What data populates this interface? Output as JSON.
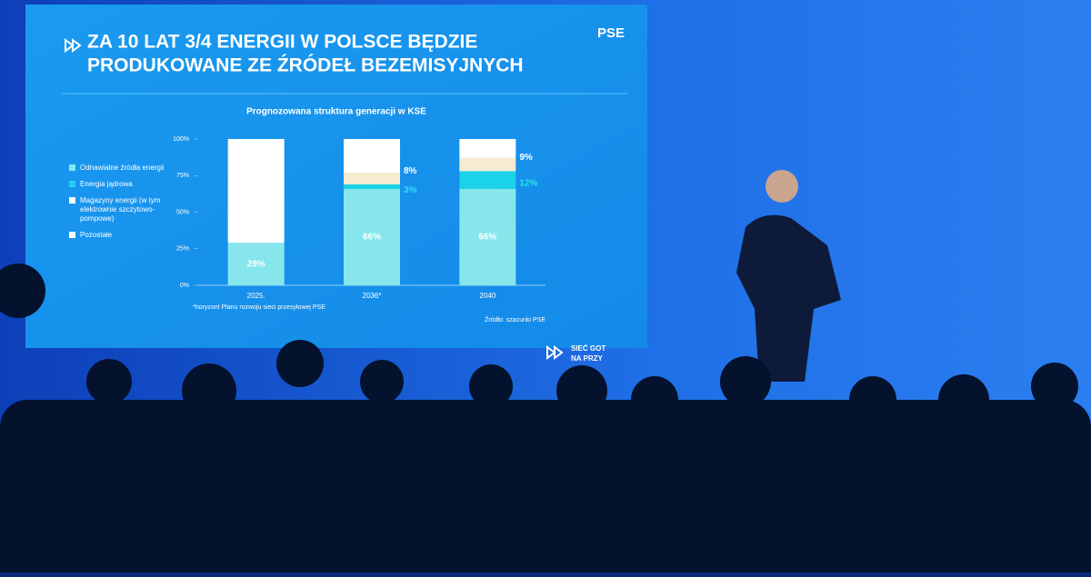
{
  "chart_data": {
    "type": "stacked-bar",
    "slide_title_lines": [
      "ZA 10 LAT 3/4 ENERGII W POLSCE BĘDZIE",
      "PRODUKOWANE ZE ŹRÓDEŁ BEZEMISYJNYCH"
    ],
    "logo": "PSE",
    "title": "Prognozowana struktura generacji w KSE",
    "categories": [
      "2025.",
      "2036*",
      "2040"
    ],
    "series": [
      {
        "name": "Odnawialne źródła energii",
        "color": "#86e6ec",
        "legend_color": "#86e6ec",
        "values": [
          29,
          66,
          66
        ],
        "value_labels": [
          "29%",
          "66%",
          "66%"
        ],
        "label_color": "#ffffff"
      },
      {
        "name": "Energia jądrowa",
        "color": "#1ad3e8",
        "legend_color": "#1ad3e8",
        "values": [
          0,
          3,
          12
        ],
        "value_labels": [
          null,
          "3%",
          "12%"
        ],
        "label_color": "#2ee0f0"
      },
      {
        "name": "Magazyny energii (w tym elektrownie szczytowo-pompowe)",
        "color": "#f6ecd0",
        "legend_color": "#ffffff",
        "values": [
          0,
          8,
          9
        ],
        "value_labels": [
          null,
          "8%",
          "9%"
        ],
        "label_color": "#ffffff"
      },
      {
        "name": "Pozostałe",
        "color": "#ffffff",
        "legend_color": "#ffffff",
        "values": [
          71,
          23,
          13
        ]
      }
    ],
    "ylim": [
      0,
      100
    ],
    "yticks": [
      {
        "value": 0,
        "label": "0%"
      },
      {
        "value": 25,
        "label": "25%"
      },
      {
        "value": 50,
        "label": "50%"
      },
      {
        "value": 75,
        "label": "75%"
      },
      {
        "value": 100,
        "label": "100%"
      }
    ],
    "footnote": "*horyzont Planu rozwoju sieci przesyłowej PSE",
    "source": "Źródło: szacunki PSE",
    "banner_lines": [
      "SIEĆ GOT",
      "NA PRZY"
    ]
  }
}
